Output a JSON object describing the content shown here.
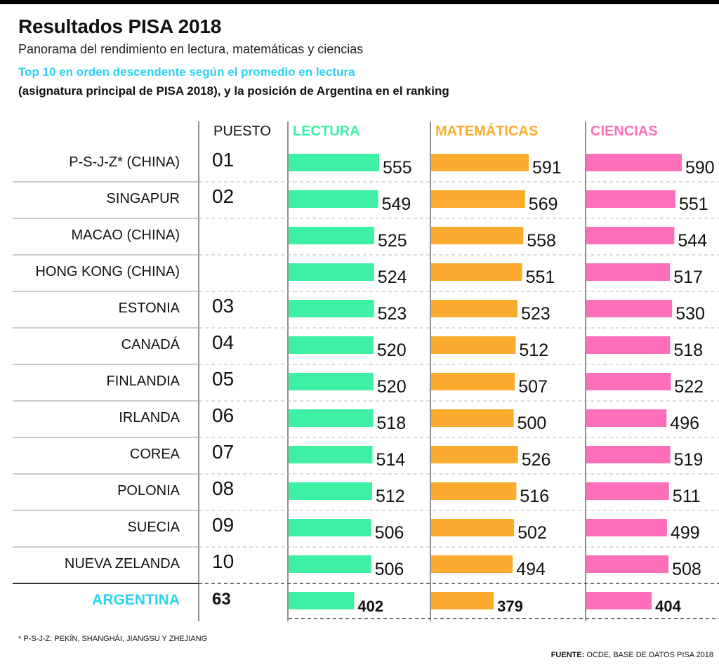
{
  "title": "Resultados PISA 2018",
  "subtitle": "Panorama del rendimiento en lectura, matemáticas y ciencias",
  "note_line1": "Top 10 en orden descendente según el promedio en lectura",
  "note_line2": "(asignatura principal de PISA 2018), y la posición de Argentina en el ranking",
  "footnote": "* P-S-J-Z: PEKÍN, SHANGHÁI, JIANGSU Y ZHEJIANG",
  "source_label": "FUENTE:",
  "source_text": " OCDE, BASE DE DATOS PISA 2018",
  "colors": {
    "lectura": "#3ef0a4",
    "matematicas": "#fbac2e",
    "ciencias": "#fd6fb9",
    "highlight": "#2ad3f5",
    "title_lectura": "#3ef0a4"
  },
  "chart_data": {
    "type": "bar",
    "column_header_puesto": "PUESTO",
    "series": [
      {
        "name": "LECTURA",
        "key": "lectura"
      },
      {
        "name": "MATEMÁTICAS",
        "key": "matematicas"
      },
      {
        "name": "CIENCIAS",
        "key": "ciencias"
      }
    ],
    "rows": [
      {
        "country": "P-S-J-Z* (CHINA)",
        "puesto": "01",
        "lectura": 555,
        "matematicas": 591,
        "ciencias": 590
      },
      {
        "country": "SINGAPUR",
        "puesto": "02",
        "lectura": 549,
        "matematicas": 569,
        "ciencias": 551
      },
      {
        "country": "MACAO (CHINA)",
        "puesto": "",
        "lectura": 525,
        "matematicas": 558,
        "ciencias": 544
      },
      {
        "country": "HONG KONG (CHINA)",
        "puesto": "",
        "lectura": 524,
        "matematicas": 551,
        "ciencias": 517
      },
      {
        "country": "ESTONIA",
        "puesto": "03",
        "lectura": 523,
        "matematicas": 523,
        "ciencias": 530
      },
      {
        "country": "CANADÁ",
        "puesto": "04",
        "lectura": 520,
        "matematicas": 512,
        "ciencias": 518
      },
      {
        "country": "FINLANDIA",
        "puesto": "05",
        "lectura": 520,
        "matematicas": 507,
        "ciencias": 522
      },
      {
        "country": "IRLANDA",
        "puesto": "06",
        "lectura": 518,
        "matematicas": 500,
        "ciencias": 496
      },
      {
        "country": "COREA",
        "puesto": "07",
        "lectura": 514,
        "matematicas": 526,
        "ciencias": 519
      },
      {
        "country": "POLONIA",
        "puesto": "08",
        "lectura": 512,
        "matematicas": 516,
        "ciencias": 511
      },
      {
        "country": "SUECIA",
        "puesto": "09",
        "lectura": 506,
        "matematicas": 502,
        "ciencias": 499
      },
      {
        "country": "NUEVA ZELANDA",
        "puesto": "10",
        "lectura": 506,
        "matematicas": 494,
        "ciencias": 508
      }
    ],
    "highlight_row": {
      "country": "ARGENTINA",
      "puesto": "63",
      "lectura": 402,
      "matematicas": 379,
      "ciencias": 404
    }
  }
}
